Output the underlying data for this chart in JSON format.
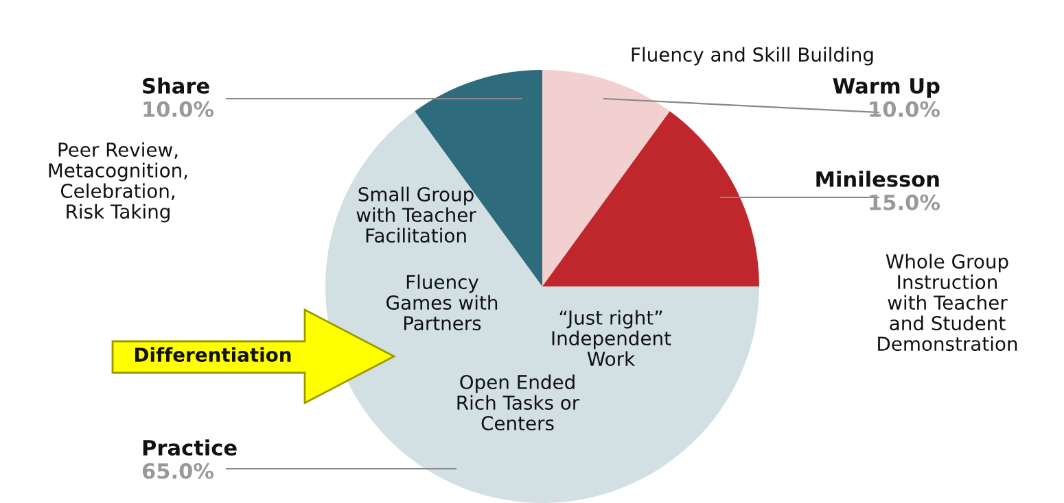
{
  "chart_data": {
    "type": "pie",
    "categories": [
      "Warm Up",
      "Minilesson",
      "Practice",
      "Share"
    ],
    "values": [
      10.0,
      15.0,
      65.0,
      10.0
    ],
    "colors": [
      "#f2d0cf",
      "#c0272d",
      "#d3e0e3",
      "#2e6b7c"
    ],
    "value_labels": [
      "10.0%",
      "15.0%",
      "65.0%",
      "10.0%"
    ],
    "legend": false,
    "annotations": [
      "Fluency and Skill Building",
      "Whole Group\nInstruction\nwith Teacher\nand Student\nDemonstration",
      "Peer Review,\nMetacognition,\nCelebration,\nRisk Taking",
      "Small Group\nwith Teacher\nFacilitation",
      "Fluency\nGames with\nPartners",
      "“Just right”\nIndependent\nWork",
      "Open Ended\nRich Tasks or\nCenters",
      "Differentiation"
    ]
  }
}
